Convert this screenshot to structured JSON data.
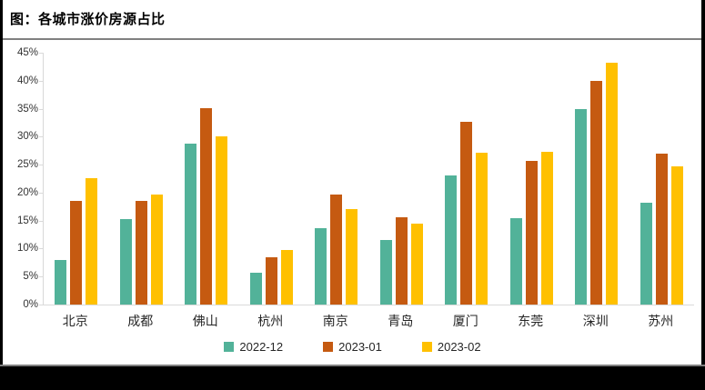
{
  "page": {
    "title": "图：各城市涨价房源占比"
  },
  "chart_data": {
    "type": "bar",
    "title": "图：各城市涨价房源占比",
    "categories": [
      "北京",
      "成都",
      "佛山",
      "杭州",
      "南京",
      "青岛",
      "厦门",
      "东莞",
      "深圳",
      "苏州"
    ],
    "series": [
      {
        "name": "2022-12",
        "color": "#52B299",
        "values": [
          8.0,
          15.2,
          28.7,
          5.7,
          13.6,
          11.6,
          23.0,
          15.5,
          35.0,
          18.2
        ]
      },
      {
        "name": "2023-01",
        "color": "#C55A11",
        "values": [
          18.5,
          18.5,
          35.1,
          8.4,
          19.7,
          15.6,
          32.7,
          25.7,
          40.0,
          26.9
        ]
      },
      {
        "name": "2023-02",
        "color": "#FFC000",
        "values": [
          22.6,
          19.6,
          30.0,
          9.7,
          17.1,
          14.4,
          27.2,
          27.3,
          43.2,
          24.7
        ]
      }
    ],
    "ylabel": "",
    "xlabel": "",
    "ylim": [
      0,
      45
    ],
    "ytick_step": 5,
    "ytick_suffix": "%",
    "grid": false,
    "legend_position": "bottom"
  },
  "colors": {
    "axis_line": "#d9d9d9",
    "tick_text": "#333333",
    "frame_border": "#000000",
    "divider": "#808080"
  }
}
